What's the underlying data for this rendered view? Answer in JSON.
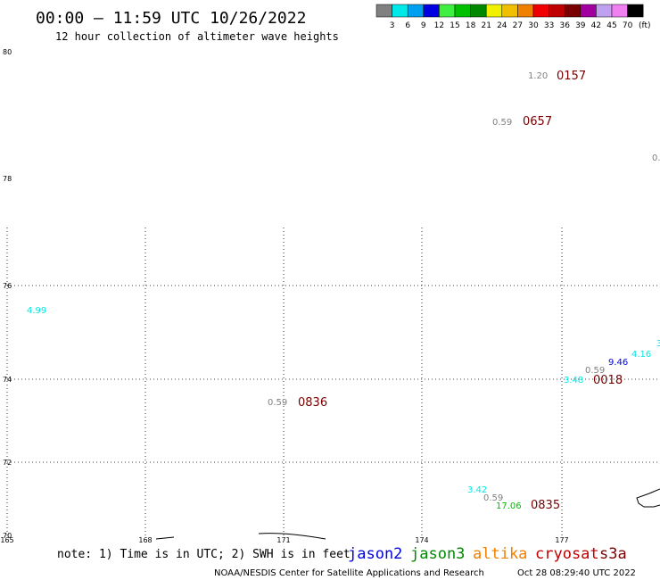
{
  "header": {
    "title": "00:00 – 11:59 UTC 10/26/2022",
    "subtitle": "12 hour collection of altimeter wave heights"
  },
  "legend": {
    "unit": "(ft)",
    "bins": [
      {
        "label": "3",
        "color": "#808080"
      },
      {
        "label": "6",
        "color": "#00e8e8"
      },
      {
        "label": "9",
        "color": "#00a0f0"
      },
      {
        "label": "12",
        "color": "#0000e0"
      },
      {
        "label": "15",
        "color": "#40f040"
      },
      {
        "label": "18",
        "color": "#00c000"
      },
      {
        "label": "21",
        "color": "#008800"
      },
      {
        "label": "24",
        "color": "#f0f000"
      },
      {
        "label": "27",
        "color": "#f0c000"
      },
      {
        "label": "30",
        "color": "#f08000"
      },
      {
        "label": "33",
        "color": "#f00000"
      },
      {
        "label": "36",
        "color": "#c00000"
      },
      {
        "label": "39",
        "color": "#780000"
      },
      {
        "label": "42",
        "color": "#a000a0"
      },
      {
        "label": "45",
        "color": "#c0a0f0"
      },
      {
        "label": "70",
        "color": "#f080f0"
      },
      {
        "label": "",
        "color": "#000000"
      }
    ]
  },
  "axes": {
    "lat_labels": [
      {
        "lat": 80,
        "label": "80"
      },
      {
        "lat": 78,
        "label": "78"
      },
      {
        "lat": 76,
        "label": "76"
      },
      {
        "lat": 74,
        "label": "74"
      },
      {
        "lat": 72,
        "label": "72"
      },
      {
        "lat": 70,
        "label": "70"
      }
    ],
    "lon_labels": [
      {
        "lon": 165,
        "label": "165"
      },
      {
        "lon": 168,
        "label": "168"
      },
      {
        "lon": 171,
        "label": "171"
      },
      {
        "lon": 174,
        "label": "174"
      },
      {
        "lon": 177,
        "label": "177"
      }
    ]
  },
  "observations": [
    {
      "value": "1.20",
      "color": "#808080",
      "pos": "a1"
    },
    {
      "value": "0157",
      "color": "#780000",
      "pos": "a2",
      "time": true
    },
    {
      "value": "0.59",
      "color": "#808080",
      "pos": "b1"
    },
    {
      "value": "0657",
      "color": "#780000",
      "pos": "b2",
      "time": true
    },
    {
      "value": "0.",
      "color": "#808080",
      "pos": "c1"
    },
    {
      "value": "4.99",
      "color": "#00e8e8",
      "pos": "d1"
    },
    {
      "value": "0.59",
      "color": "#808080",
      "pos": "e1"
    },
    {
      "value": "0836",
      "color": "#780000",
      "pos": "e2",
      "time": true
    },
    {
      "value": "3",
      "color": "#00e8e8",
      "pos": "f1"
    },
    {
      "value": "4.16",
      "color": "#00e8e8",
      "pos": "f2"
    },
    {
      "value": "9.46",
      "color": "#0000e0",
      "pos": "f3"
    },
    {
      "value": "0.59",
      "color": "#808080",
      "pos": "f4"
    },
    {
      "value": "3.48",
      "color": "#00e8e8",
      "pos": "f5"
    },
    {
      "value": "0018",
      "color": "#780000",
      "pos": "f6",
      "time": true
    },
    {
      "value": "3.42",
      "color": "#00e8e8",
      "pos": "g1"
    },
    {
      "value": "0.59",
      "color": "#808080",
      "pos": "g2"
    },
    {
      "value": "17.06",
      "color": "#00c000",
      "pos": "g3"
    },
    {
      "value": "0835",
      "color": "#780000",
      "pos": "g4",
      "time": true
    }
  ],
  "footer": {
    "note": "note: 1) Time is in UTC; 2) SWH is in feet",
    "missions": [
      {
        "name": "jason2",
        "color": "#0000e0"
      },
      {
        "name": "jason3",
        "color": "#008800"
      },
      {
        "name": "altika",
        "color": "#f08000"
      },
      {
        "name": "cryosat",
        "color": "#c00000"
      },
      {
        "name": "s3a",
        "color": "#780000"
      }
    ],
    "credit": "NOAA/NESDIS Center for Satellite Applications and Research",
    "timestamp": "Oct 28 08:29:40 UTC 2022"
  }
}
